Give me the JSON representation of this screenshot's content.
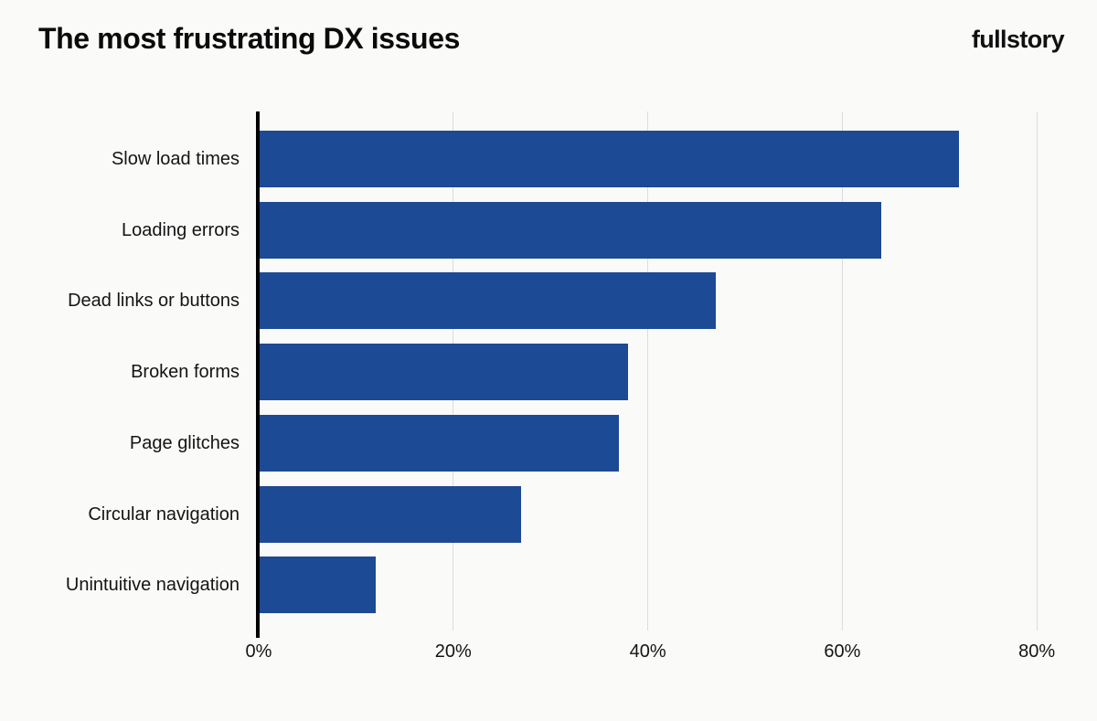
{
  "header": {
    "title": "The most frustrating DX issues",
    "brand": "fullstory"
  },
  "chart_data": {
    "type": "bar",
    "orientation": "horizontal",
    "title": "The most frustrating DX issues",
    "categories": [
      "Slow load times",
      "Loading errors",
      "Dead links or buttons",
      "Broken forms",
      "Page glitches",
      "Circular navigation",
      "Unintuitive navigation"
    ],
    "values": [
      72,
      64,
      47,
      38,
      37,
      27,
      12
    ],
    "unit": "%",
    "x_tick_labels": [
      "0%",
      "20%",
      "40%",
      "60%",
      "80%"
    ],
    "x_tick_values": [
      0,
      20,
      40,
      60,
      80
    ],
    "xlim": [
      0,
      85
    ],
    "grid": "vertical-only",
    "legend": false,
    "data_labels": false,
    "bar_color": "#1c4a94",
    "axis_color": "#000000",
    "gridline_color": "#dcdcdc",
    "background_color": "#fafaf8",
    "text_color": "#141414"
  }
}
